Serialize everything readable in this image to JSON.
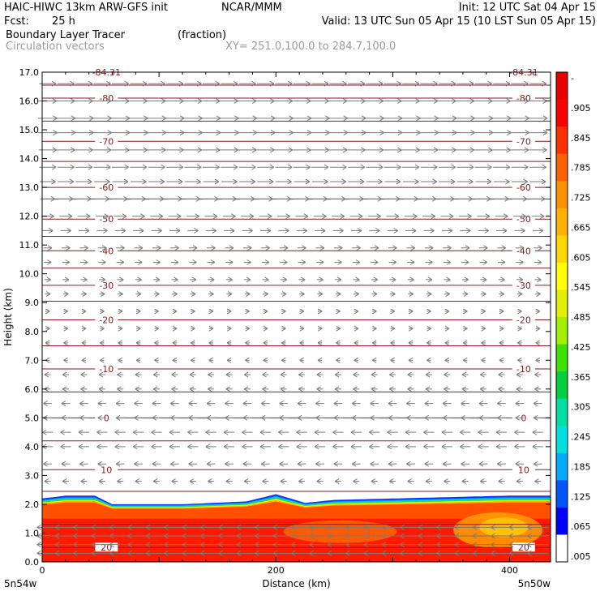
{
  "header": {
    "title_left": "HAIC-HIWC 13km ARW-GFS init",
    "title_center": "NCAR/MMM",
    "init": "Init: 12 UTC Sat 04 Apr 15",
    "fcst_label": "Fcst:",
    "fcst_value": "25 h",
    "valid": "Valid: 13 UTC Sun 05 Apr 15 (10 LST Sun 05 Apr 15)",
    "field_name": "Boundary Layer Tracer",
    "field_units": "(fraction)",
    "vector_label": "Circulation vectors",
    "xy_label": "XY= 251.0,100.0 to 284.7,100.0"
  },
  "colors": {
    "temperature_contour": "#8b1a1a",
    "vector": "#7a7a7a",
    "frame": "#000000"
  },
  "chart_data": {
    "type": "heatmap",
    "title": "Boundary Layer Tracer",
    "xlabel": "Distance (km)",
    "ylabel": "Height (km)",
    "xlim": [
      0,
      435
    ],
    "ylim": [
      0,
      17
    ],
    "x_ticks": [
      0,
      200,
      400
    ],
    "y_ticks": [
      "0.0",
      "1.0",
      "2.0",
      "3.0",
      "4.0",
      "5.0",
      "6.0",
      "7.0",
      "8.0",
      "9.0",
      "10.0",
      "11.0",
      "12.0",
      "13.0",
      "14.0",
      "15.0",
      "16.0",
      "17.0"
    ],
    "x_end_labels": {
      "left": "5n54w",
      "right": "5n50w"
    },
    "grid": false,
    "colorbar": {
      "ticks": [
        "-",
        ".905",
        ".845",
        ".785",
        ".725",
        ".665",
        ".605",
        ".545",
        ".485",
        ".425",
        ".365",
        ".305",
        ".245",
        ".185",
        ".125",
        ".065",
        ".005"
      ],
      "tick_values": [
        0.965,
        0.905,
        0.845,
        0.785,
        0.725,
        0.665,
        0.605,
        0.545,
        0.485,
        0.425,
        0.365,
        0.305,
        0.245,
        0.185,
        0.125,
        0.065,
        0.005
      ],
      "colors": [
        "#ffffff",
        "#0000ff",
        "#0055ff",
        "#00aaff",
        "#00e0e0",
        "#00e0a0",
        "#00d040",
        "#40e000",
        "#a0f000",
        "#e0f000",
        "#ffff00",
        "#ffd700",
        "#ffb000",
        "#ff9000",
        "#ff6000",
        "#ff3000",
        "#ff0000",
        "#e80000"
      ]
    },
    "tracer_profile": {
      "boundary_layer_top_km": [
        [
          0,
          2.2
        ],
        [
          20,
          2.3
        ],
        [
          45,
          2.3
        ],
        [
          60,
          2.0
        ],
        [
          120,
          2.0
        ],
        [
          175,
          2.1
        ],
        [
          200,
          2.35
        ],
        [
          225,
          2.05
        ],
        [
          250,
          2.15
        ],
        [
          300,
          2.2
        ],
        [
          350,
          2.25
        ],
        [
          400,
          2.3
        ],
        [
          435,
          2.3
        ]
      ],
      "full_value_top_km": 1.5
    },
    "temperature_contours": [
      {
        "label": "20",
        "y_left": 0.5,
        "y_right": 0.5
      },
      {
        "label": "10",
        "y_left": 3.2,
        "y_right": 3.2
      },
      {
        "label": "0",
        "y_left": 5.0,
        "y_right": 5.0
      },
      {
        "label": "-10",
        "y_left": 6.7,
        "y_right": 6.7
      },
      {
        "label": "-20",
        "y_left": 8.4,
        "y_right": 8.4
      },
      {
        "label": "-30",
        "y_left": 9.6,
        "y_right": 9.6
      },
      {
        "label": "-40",
        "y_left": 10.8,
        "y_right": 10.8
      },
      {
        "label": "-50",
        "y_left": 11.9,
        "y_right": 11.9
      },
      {
        "label": "-60",
        "y_left": 13.0,
        "y_right": 13.0
      },
      {
        "label": "-70",
        "y_left": 14.6,
        "y_right": 14.6
      },
      {
        "label": "-80",
        "y_left": 16.1,
        "y_right": 16.1
      },
      {
        "label": "-84.31",
        "y_left": 17.0,
        "y_right": 17.0
      }
    ],
    "unlabeled_contour_heights_km": [
      1.3,
      2.45,
      4.2,
      5.9,
      7.5,
      9.05,
      10.2,
      11.3,
      12.6,
      13.9,
      15.3,
      16.55
    ],
    "vector_rows_km": [
      0.3,
      0.6,
      0.9,
      1.2,
      2.8,
      3.4,
      4.0,
      4.5,
      5.0,
      5.5,
      6.0,
      6.5,
      7.0,
      7.6,
      8.1,
      8.7,
      9.3,
      9.8,
      10.4,
      10.9,
      11.5,
      12.0,
      12.6,
      13.2,
      13.7,
      14.3,
      14.9,
      15.4,
      16.0,
      16.6
    ],
    "vector_u_by_row": [
      -1,
      -1,
      -1,
      -1,
      -0.3,
      -0.4,
      -0.5,
      -0.5,
      -0.4,
      -0.4,
      -0.3,
      -0.3,
      -0.2,
      -0.2,
      0.2,
      0.2,
      0.25,
      0.3,
      0.35,
      0.4,
      0.5,
      0.6,
      0.7,
      0.75,
      0.8,
      0.85,
      0.9,
      0.9,
      0.85,
      0.8
    ]
  }
}
